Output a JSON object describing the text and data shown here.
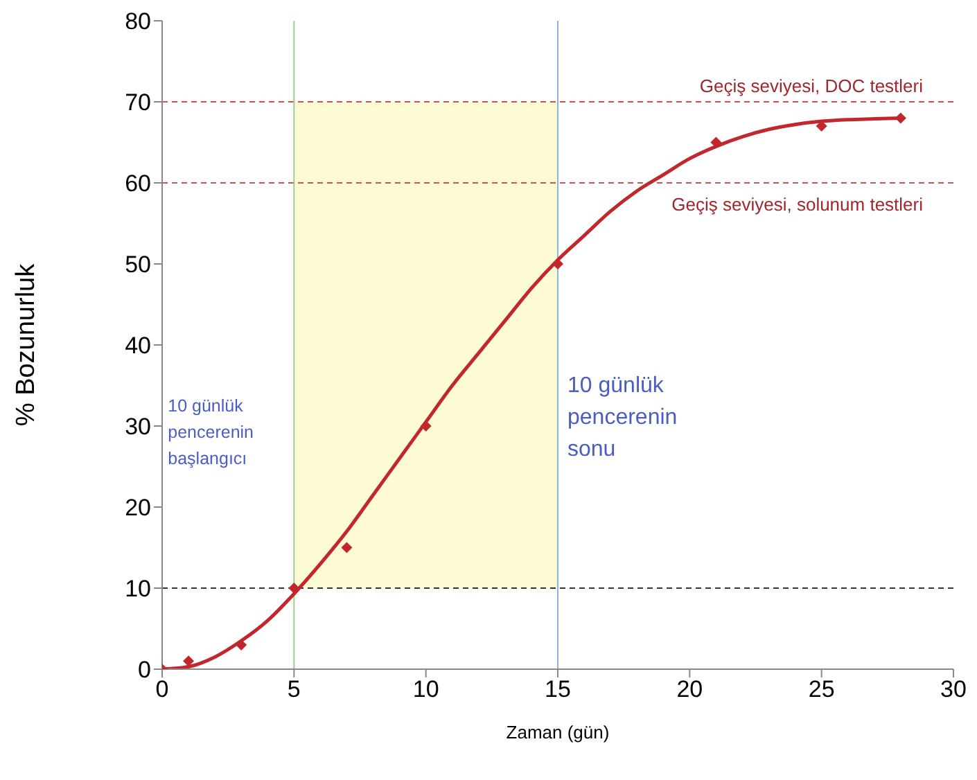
{
  "chart_data": {
    "type": "scatter",
    "xlabel": "Zaman (gün)",
    "ylabel": "% Bozunurluk",
    "xlim": [
      0,
      30
    ],
    "xticks": [
      0,
      5,
      10,
      15,
      20,
      25,
      30
    ],
    "ylim": [
      0,
      80
    ],
    "yticks": [
      0,
      10,
      20,
      30,
      40,
      50,
      60,
      70,
      80
    ],
    "series": [
      {
        "color": "#c0282d",
        "marker": "diamond",
        "x": [
          0,
          1,
          3,
          5,
          7,
          10,
          15,
          21,
          25,
          28
        ],
        "values": [
          0,
          1,
          3,
          10,
          15,
          30,
          50,
          65,
          67,
          68
        ]
      },
      {
        "type": "line",
        "color": "#c0282d",
        "marker": "none",
        "line_style": "solid",
        "x": [
          0,
          1,
          2,
          3,
          4,
          5,
          6,
          7,
          8,
          9,
          10,
          11,
          12,
          13,
          14,
          15,
          16,
          17,
          18,
          19,
          20,
          21,
          22,
          23,
          24,
          25,
          26,
          27,
          28
        ],
        "values": [
          0,
          0.3,
          1.5,
          3.5,
          6,
          9.3,
          13,
          17,
          21.5,
          26,
          30.5,
          35,
          39,
          43,
          47,
          50.5,
          53.5,
          56.5,
          59,
          61,
          63,
          64.5,
          65.7,
          66.6,
          67.2,
          67.6,
          67.8,
          67.9,
          68
        ]
      }
    ],
    "ref_lines": [
      {
        "axis": "y",
        "value": 70,
        "label": "Geçiş seviyesi, DOC testleri",
        "color": "#d0504f",
        "line_style": "dashed"
      },
      {
        "axis": "y",
        "value": 60,
        "label": "Geçiş seviyesi, solunum testleri",
        "color": "#d0504f",
        "line_style": "dashed"
      },
      {
        "axis": "y",
        "value": 10,
        "color": "#333333",
        "line_style": "dashed"
      },
      {
        "axis": "x",
        "value": 5,
        "label": "10 günlük pencerenin başlangıcı",
        "color": "#9bd08a",
        "line_style": "solid"
      },
      {
        "axis": "x",
        "value": 15,
        "label": "10 günlük pencerenin sonu",
        "color": "#8fb3dc",
        "line_style": "solid"
      }
    ],
    "bands": [
      {
        "axis": "x",
        "from": 5,
        "to": 15,
        "color": "#fdfbd3"
      }
    ]
  }
}
